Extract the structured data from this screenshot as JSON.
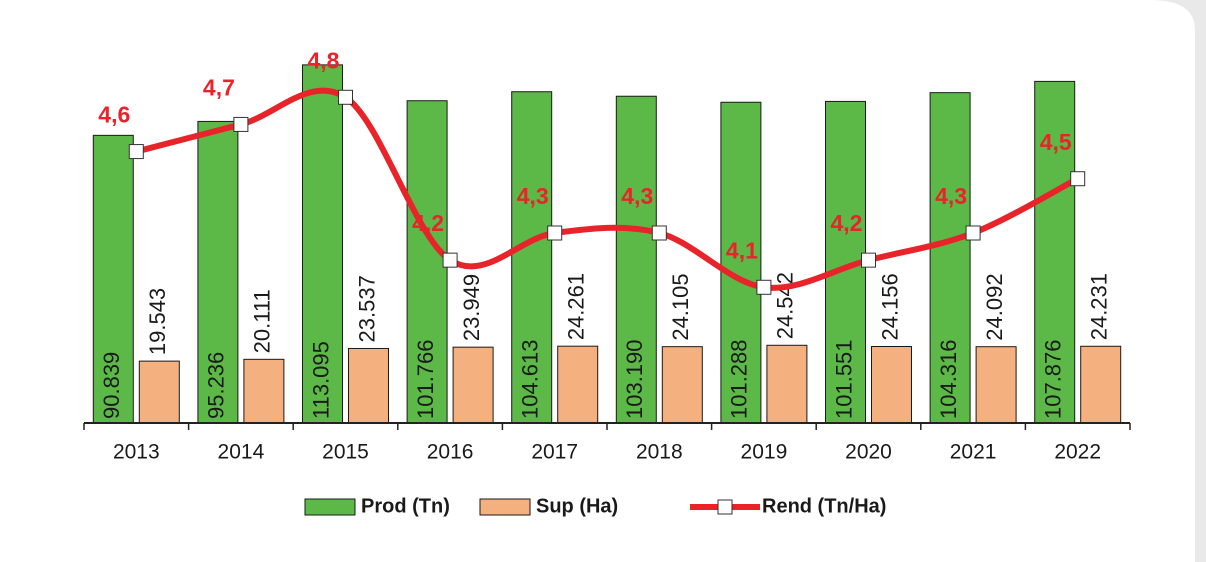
{
  "chart_data": {
    "type": "bar",
    "categories": [
      "2013",
      "2014",
      "2015",
      "2016",
      "2017",
      "2018",
      "2019",
      "2020",
      "2021",
      "2022"
    ],
    "series": [
      {
        "name": "Prod (Tn)",
        "color": "#5cb947",
        "values": [
          90839,
          95236,
          113095,
          101766,
          104613,
          103190,
          101288,
          101551,
          104316,
          107876
        ],
        "value_labels": [
          "90.839",
          "95.236",
          "113.095",
          "101.766",
          "104.613",
          "103.190",
          "101.288",
          "101.551",
          "104.316",
          "107.876"
        ]
      },
      {
        "name": "Sup (Ha)",
        "color": "#f5b07f",
        "values": [
          19543,
          20111,
          23537,
          23949,
          24261,
          24105,
          24542,
          24156,
          24092,
          24231
        ],
        "value_labels": [
          "19.543",
          "20.111",
          "23.537",
          "23.949",
          "24.261",
          "24.105",
          "24.542",
          "24.156",
          "24.092",
          "24.231"
        ]
      },
      {
        "name": "Rend (Tn/Ha)",
        "color": "#e8242a",
        "type": "line",
        "axis": "y2",
        "values": [
          4.6,
          4.7,
          4.8,
          4.2,
          4.3,
          4.3,
          4.1,
          4.2,
          4.3,
          4.5
        ],
        "value_labels": [
          "4,6",
          "4,7",
          "4,8",
          "4,2",
          "4,3",
          "4,3",
          "4,1",
          "4,2",
          "4,3",
          "4,5"
        ]
      }
    ],
    "ylim": [
      0,
      120000
    ],
    "y2lim": [
      3.6,
      5.0
    ],
    "legend": "bottom"
  }
}
